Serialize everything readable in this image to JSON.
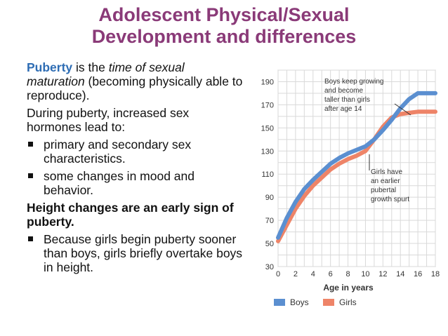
{
  "slide": {
    "title_line1": "Adolescent Physical/Sexual",
    "title_line2": "Development and differences",
    "intro": {
      "term": "Puberty",
      "is_the": " is the ",
      "definition": "time of sexual maturation",
      "explanation": " (becoming physically able to reproduce)."
    },
    "hormones_intro": "During puberty, increased sex hormones lead to:",
    "hormone_bullets": [
      "primary and secondary sex characteristics.",
      "some changes in mood and behavior."
    ],
    "height_heading": "Height changes are an early sign of puberty.",
    "height_bullets": [
      "Because girls begin puberty sooner than boys, girls briefly overtake boys in height."
    ]
  },
  "chart_data": {
    "type": "line",
    "xlabel": "Age in years",
    "ylabel": "",
    "xlim": [
      0,
      18
    ],
    "ylim": [
      30,
      200
    ],
    "x_ticks": [
      "0",
      "2",
      "4",
      "6",
      "8",
      "10",
      "12",
      "14",
      "16",
      "18"
    ],
    "y_ticks": [
      "30",
      "50",
      "70",
      "90",
      "110",
      "130",
      "150",
      "170",
      "190"
    ],
    "grid": true,
    "legend_position": "bottom",
    "series": [
      {
        "name": "Boys",
        "color": "#5b8fd0",
        "x": [
          0,
          1,
          2,
          3,
          4,
          5,
          6,
          7,
          8,
          9,
          10,
          11,
          12,
          13,
          14,
          15,
          16,
          17,
          18
        ],
        "y": [
          55,
          72,
          86,
          97,
          105,
          112,
          119,
          124,
          128,
          131,
          134,
          140,
          148,
          157,
          167,
          175,
          180,
          180,
          180
        ]
      },
      {
        "name": "Girls",
        "color": "#ee8468",
        "x": [
          0,
          1,
          2,
          3,
          4,
          5,
          6,
          7,
          8,
          9,
          10,
          11,
          12,
          13,
          14,
          15,
          16,
          17,
          18
        ],
        "y": [
          52,
          66,
          80,
          91,
          100,
          107,
          114,
          119,
          123,
          126,
          130,
          140,
          151,
          159,
          162,
          163,
          164,
          164,
          164
        ]
      }
    ],
    "annotations": [
      {
        "text": "Boys keep growing and become taller than girls after age 14",
        "lines": [
          "Boys keep growing",
          "and become",
          "taller than girls",
          "after age 14"
        ]
      },
      {
        "text": "Girls have an earlier pubertal growth spurt",
        "lines": [
          "Girls have",
          "an earlier",
          "pubertal",
          "growth spurt"
        ]
      }
    ]
  }
}
